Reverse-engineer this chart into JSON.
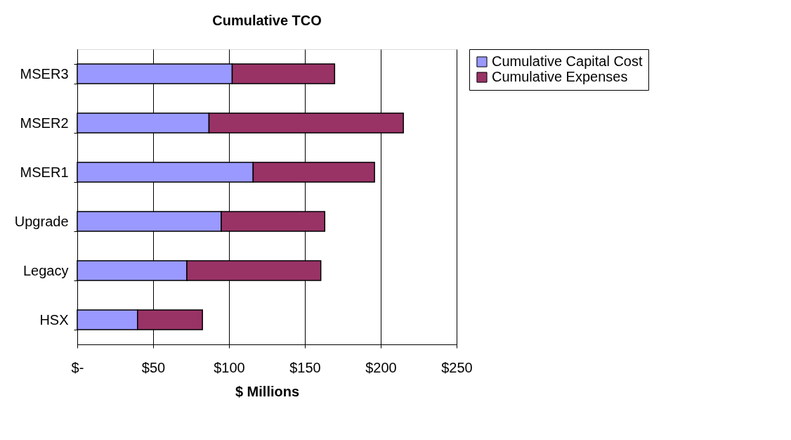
{
  "chart_data": {
    "type": "bar",
    "title": "Cumulative TCO",
    "xlabel": "$ Millions",
    "orientation": "horizontal",
    "stacked": true,
    "categories": [
      "MSER3",
      "MSER2",
      "MSER1",
      "Upgrade",
      "Legacy",
      "HSX"
    ],
    "series": [
      {
        "name": "Cumulative Capital Cost",
        "color": "#9999ff",
        "values": [
          102.1,
          86.8,
          115.9,
          94.9,
          72.2,
          39.7
        ]
      },
      {
        "name": "Cumulative Expenses",
        "color": "#993366",
        "values": [
          67.5,
          128.1,
          80.0,
          68.2,
          88.3,
          42.8
        ]
      }
    ],
    "xlim": [
      0,
      250
    ],
    "xticks": [
      {
        "value": 0,
        "label": "$-"
      },
      {
        "value": 50,
        "label": "$50"
      },
      {
        "value": 100,
        "label": "$100"
      },
      {
        "value": 150,
        "label": "$150"
      },
      {
        "value": 200,
        "label": "$200"
      },
      {
        "value": 250,
        "label": "$250"
      }
    ],
    "grid": "x",
    "legend": "right"
  }
}
